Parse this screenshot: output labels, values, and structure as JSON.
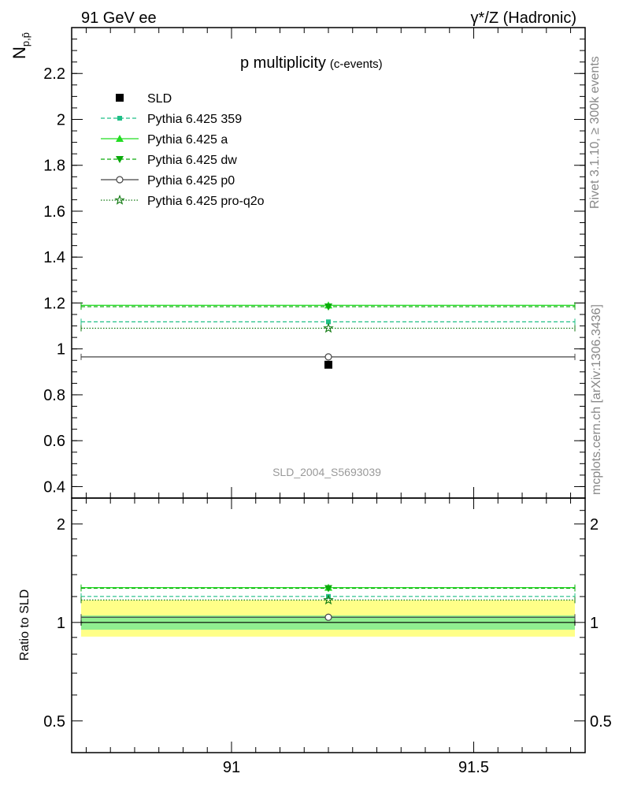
{
  "header": {
    "left": "91 GeV ee",
    "right": "γ*/Z (Hadronic)"
  },
  "side_labels": {
    "rivet": "Rivet 3.1.10, ≥ 300k events",
    "mcplots": "mcplots.cern.ch [arXiv:1306.3436]"
  },
  "watermark": "SLD_2004_S5693039",
  "chart_data": [
    {
      "type": "scatter",
      "panel": "main",
      "title": "p multiplicity",
      "title_sub": "(c-events)",
      "ylabel_main": "N",
      "ylabel_sub": "p,p̄",
      "xlim": [
        90.67,
        91.73
      ],
      "ylim": [
        0.35,
        2.4
      ],
      "x_ticks": [
        91,
        91.5
      ],
      "y_ticks": [
        0.4,
        0.6,
        0.8,
        1,
        1.2,
        1.4,
        1.6,
        1.8,
        2,
        2.2
      ],
      "y_tick_labels": [
        "0.4",
        "0.6",
        "0.8",
        "1",
        "1.2",
        "1.4",
        "1.6",
        "1.8",
        "2",
        "2.2"
      ],
      "legend_position": "top-left",
      "series": [
        {
          "name": "SLD",
          "kind": "data",
          "color": "#000000",
          "marker": "square",
          "x": 91.2,
          "y": 0.931,
          "err": 0.015
        },
        {
          "name": "Pythia 6.425 359",
          "kind": "mc",
          "color": "#1fbf86",
          "dash": "5,3",
          "marker": "square-small",
          "x": 91.2,
          "y": 1.118
        },
        {
          "name": "Pythia 6.425 a",
          "kind": "mc",
          "color": "#22dd22",
          "dash": "",
          "marker": "triangle-up",
          "x": 91.2,
          "y": 1.19,
          "err": 0.012
        },
        {
          "name": "Pythia 6.425 dw",
          "kind": "mc",
          "color": "#0aaa0a",
          "dash": "5,3",
          "marker": "triangle-down",
          "x": 91.2,
          "y": 1.184
        },
        {
          "name": "Pythia 6.425 p0",
          "kind": "mc",
          "color": "#444444",
          "dash": "",
          "marker": "circle-open",
          "x": 91.2,
          "y": 0.965
        },
        {
          "name": "Pythia 6.425 pro-q2o",
          "kind": "mc",
          "color": "#127a12",
          "dash": "1.5,2",
          "marker": "star-open",
          "x": 91.2,
          "y": 1.09
        }
      ]
    },
    {
      "type": "scatter",
      "panel": "ratio",
      "ylabel": "Ratio to SLD",
      "xlim": [
        90.67,
        91.73
      ],
      "ylim": [
        0.4,
        2.4
      ],
      "log_y": true,
      "y_ticks": [
        0.5,
        1,
        2
      ],
      "y_tick_labels": [
        "0.5",
        "1",
        "2"
      ],
      "x_ticks": [
        91,
        91.5
      ],
      "x_tick_labels": [
        "91",
        "91.5"
      ],
      "band_stat": [
        0.95,
        1.05
      ],
      "band_total": [
        0.905,
        1.17
      ],
      "band_stat_color": "#90ee90",
      "band_total_color": "#ffff88",
      "ratios": [
        {
          "name": "SLD",
          "y": 1.0
        },
        {
          "name": "Pythia 6.425 359",
          "y": 1.201
        },
        {
          "name": "Pythia 6.425 a",
          "y": 1.278
        },
        {
          "name": "Pythia 6.425 dw",
          "y": 1.272
        },
        {
          "name": "Pythia 6.425 p0",
          "y": 1.037
        },
        {
          "name": "Pythia 6.425 pro-q2o",
          "y": 1.171
        }
      ]
    }
  ]
}
